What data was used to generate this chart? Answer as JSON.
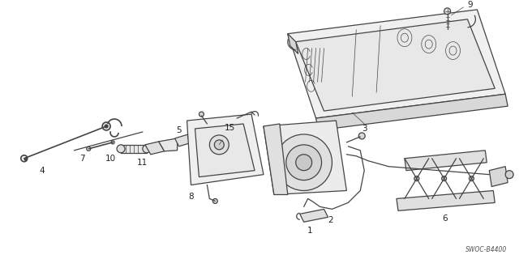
{
  "background_color": "#ffffff",
  "line_color": "#444444",
  "diagram_code": "SWOC-B4400",
  "label_color": "#222222",
  "label_fontsize": 7.5,
  "lw_main": 0.9,
  "lw_thin": 0.5,
  "lw_thick": 1.2
}
